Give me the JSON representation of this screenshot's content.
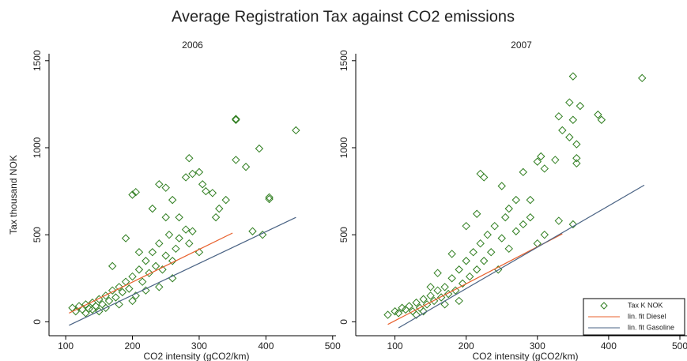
{
  "title": "Average Registration Tax against CO2 emissions",
  "chart_data": [
    {
      "type": "scatter",
      "title": "2006",
      "x_label": "CO2 intensity (gCO2/km)",
      "y_label": "Tax thousand NOK",
      "xlim": [
        75,
        505
      ],
      "ylim": [
        -80,
        1540
      ],
      "xticks": [
        100,
        200,
        300,
        400,
        500
      ],
      "yticks": [
        0,
        500,
        1000,
        1500
      ],
      "series": [
        {
          "color": "#2e7d1e",
          "marker": "diamond",
          "x": [
            110,
            115,
            120,
            125,
            130,
            135,
            140,
            145,
            150,
            155,
            160,
            165,
            170,
            175,
            180,
            185,
            190,
            195,
            200,
            205,
            210,
            215,
            220,
            225,
            230,
            235,
            240,
            245,
            250,
            255,
            260,
            265,
            270,
            280,
            285,
            290,
            300,
            260,
            240,
            220,
            200,
            180,
            160,
            150,
            140,
            130,
            200,
            205,
            230,
            240,
            250,
            260,
            270,
            280,
            285,
            290,
            300,
            305,
            310,
            320,
            325,
            330,
            340,
            355,
            355,
            355,
            370,
            380,
            390,
            395,
            405,
            405,
            445,
            210,
            190,
            170,
            250
          ],
          "values": [
            80,
            60,
            90,
            70,
            100,
            75,
            110,
            90,
            130,
            100,
            150,
            120,
            180,
            140,
            200,
            170,
            230,
            190,
            260,
            150,
            300,
            230,
            350,
            280,
            400,
            320,
            450,
            300,
            380,
            500,
            350,
            420,
            480,
            530,
            450,
            520,
            400,
            250,
            200,
            180,
            120,
            100,
            80,
            60,
            70,
            50,
            730,
            745,
            650,
            790,
            770,
            700,
            600,
            830,
            940,
            850,
            860,
            790,
            750,
            740,
            600,
            650,
            700,
            930,
            1160,
            1165,
            890,
            520,
            995,
            500,
            705,
            715,
            1100,
            400,
            480,
            320,
            600
          ]
        },
        {
          "color": "#e8602c",
          "marker": "line",
          "x": [
            105,
            350
          ],
          "values": [
            50,
            510
          ]
        },
        {
          "color": "#4a6384",
          "marker": "line",
          "x": [
            105,
            445
          ],
          "values": [
            -20,
            600
          ]
        }
      ]
    },
    {
      "type": "scatter",
      "title": "2007",
      "x_label": "CO2 intensity (gCO2/km)",
      "xlim": [
        45,
        510
      ],
      "ylim": [
        -80,
        1540
      ],
      "xticks": [
        100,
        200,
        300,
        400,
        500
      ],
      "yticks": [
        0,
        500,
        1000,
        1500
      ],
      "legend": "lower right",
      "series": [
        {
          "name": "Tax K NOK",
          "color": "#2e7d1e",
          "marker": "diamond",
          "x": [
            90,
            100,
            105,
            110,
            115,
            120,
            125,
            130,
            135,
            140,
            145,
            150,
            155,
            160,
            165,
            170,
            175,
            180,
            185,
            190,
            195,
            200,
            205,
            210,
            215,
            220,
            225,
            230,
            235,
            240,
            245,
            250,
            255,
            260,
            270,
            280,
            290,
            300,
            310,
            215,
            220,
            225,
            250,
            260,
            270,
            280,
            290,
            300,
            305,
            310,
            325,
            330,
            335,
            345,
            350,
            355,
            355,
            355,
            360,
            345,
            350,
            385,
            390,
            447,
            350,
            330,
            200,
            180,
            160,
            150,
            140,
            130,
            170,
            190
          ],
          "values": [
            40,
            60,
            50,
            80,
            70,
            90,
            60,
            110,
            80,
            130,
            100,
            150,
            120,
            180,
            140,
            200,
            160,
            250,
            180,
            300,
            220,
            350,
            260,
            400,
            300,
            450,
            350,
            500,
            400,
            550,
            300,
            480,
            600,
            420,
            520,
            560,
            600,
            450,
            500,
            620,
            850,
            830,
            780,
            650,
            700,
            860,
            700,
            920,
            950,
            880,
            930,
            1180,
            1100,
            1060,
            1160,
            940,
            910,
            1020,
            1240,
            1260,
            1410,
            1190,
            1160,
            1400,
            560,
            580,
            550,
            390,
            280,
            200,
            60,
            40,
            100,
            120
          ]
        },
        {
          "name": "lin. fit Diesel",
          "color": "#e8602c",
          "marker": "line",
          "x": [
            90,
            335
          ],
          "values": [
            -15,
            505
          ]
        },
        {
          "name": "lin. fit Gasoline",
          "color": "#4a6384",
          "marker": "line",
          "x": [
            105,
            450
          ],
          "values": [
            -35,
            785
          ]
        }
      ]
    }
  ]
}
